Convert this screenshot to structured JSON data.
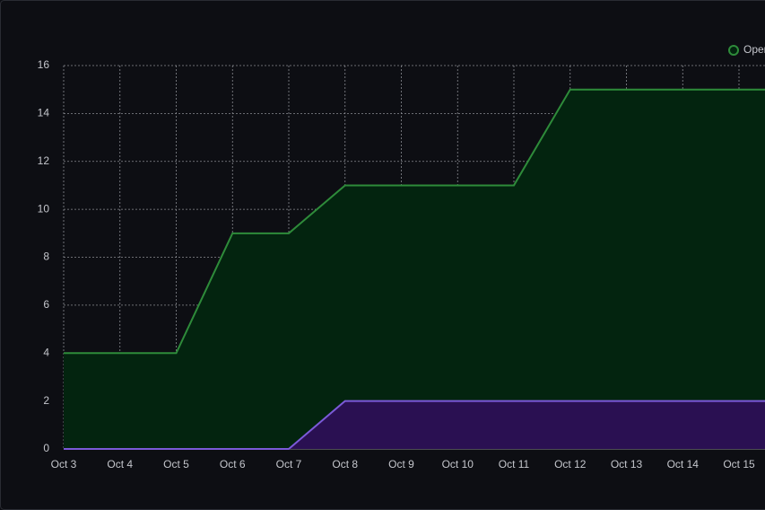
{
  "chart_data": {
    "type": "area",
    "categories": [
      "Oct 3",
      "Oct 4",
      "Oct 5",
      "Oct 6",
      "Oct 7",
      "Oct 8",
      "Oct 9",
      "Oct 10",
      "Oct 11",
      "Oct 12",
      "Oct 13",
      "Oct 14",
      "Oct 15",
      null
    ],
    "series": [
      {
        "name": "Open",
        "color": "#2e8b3a",
        "fill": "#03240f",
        "values": [
          4,
          4,
          4,
          9,
          9,
          11,
          11,
          11,
          11,
          15,
          15,
          15,
          15,
          15
        ]
      },
      {
        "color": "#7b5ad8",
        "fill": "#2a1052",
        "values": [
          0,
          0,
          0,
          0,
          0,
          2,
          2,
          2,
          2,
          2,
          2,
          2,
          2,
          2
        ]
      }
    ],
    "ylim": [
      0,
      16
    ],
    "yticks": [
      0,
      2,
      4,
      6,
      8,
      10,
      12,
      14,
      16
    ],
    "grid": true,
    "legend": "top-right"
  }
}
